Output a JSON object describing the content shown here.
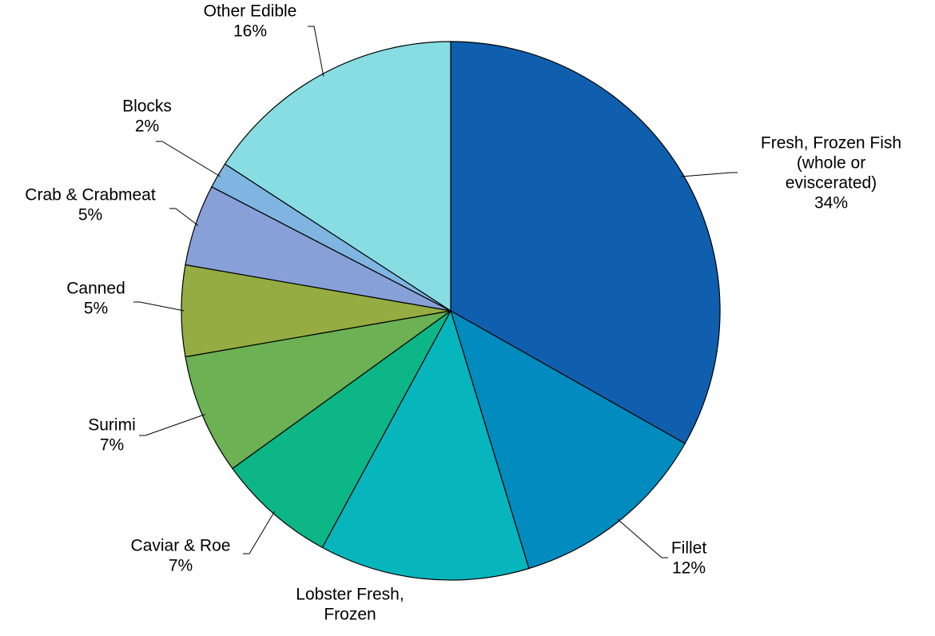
{
  "chart_data": {
    "type": "pie",
    "title": "",
    "start_angle_deg": 0,
    "direction": "clockwise",
    "slices": [
      {
        "label": "Fresh, Frozen Fish (whole or eviscerated)",
        "label_lines": [
          "Fresh, Frozen Fish",
          "(whole or",
          "eviscerated)"
        ],
        "pct_label": "34%",
        "value": 34.0,
        "color": "#0f5fae"
      },
      {
        "label": "Fillet",
        "label_lines": [
          "Fillet"
        ],
        "pct_label": "12%",
        "value": 12.4,
        "color": "#018bbe"
      },
      {
        "label": "Lobster Fresh, Frozen",
        "label_lines": [
          "Lobster Fresh,",
          "Frozen"
        ],
        "pct_label": "",
        "value": 12.9,
        "color": "#07b5bd"
      },
      {
        "label": "Caviar & Roe",
        "label_lines": [
          "Caviar & Roe"
        ],
        "pct_label": "7%",
        "value": 7.3,
        "color": "#0db686"
      },
      {
        "label": "Surimi",
        "label_lines": [
          "Surimi"
        ],
        "pct_label": "7%",
        "value": 7.4,
        "color": "#6cb154"
      },
      {
        "label": "Canned",
        "label_lines": [
          "Canned"
        ],
        "pct_label": "5%",
        "value": 5.6,
        "color": "#94ac41"
      },
      {
        "label": "Crab & Crabmeat",
        "label_lines": [
          "Crab & Crabmeat"
        ],
        "pct_label": "5%",
        "value": 5.0,
        "color": "#87a0d8"
      },
      {
        "label": "Blocks",
        "label_lines": [
          "Blocks"
        ],
        "pct_label": "2%",
        "value": 1.6,
        "color": "#7fb5e0"
      },
      {
        "label": "Other Edible",
        "label_lines": [
          "Other Edible"
        ],
        "pct_label": "16%",
        "value": 16.2,
        "color": "#87dde2"
      }
    ]
  }
}
